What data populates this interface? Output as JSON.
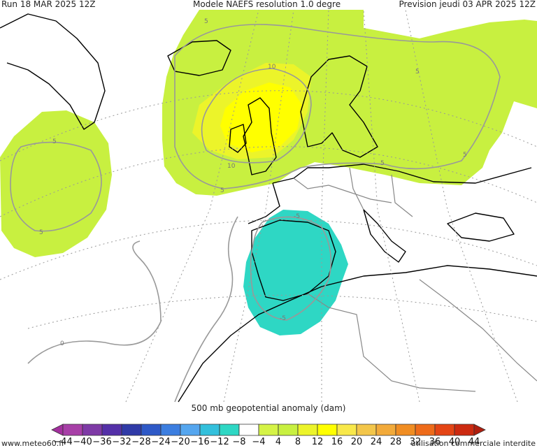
{
  "header": {
    "run": "Run 18 MAR 2025 12Z",
    "model": "Modele NAEFS resolution 1.0 degre",
    "forecast": "Prevision jeudi 03 APR 2025 12Z"
  },
  "subtitle": "500 mb geopotential anomaly (dam)",
  "footer": {
    "site": "www.meteo60.fr",
    "notice": "utilisation commerciale interdite"
  },
  "contour_labels": [
    {
      "text": "5",
      "name": "contour-label-greenland"
    },
    {
      "text": "10",
      "name": "contour-label-north-sea-upper"
    },
    {
      "text": "10",
      "name": "contour-label-north-sea-lower"
    },
    {
      "text": "5",
      "name": "contour-label-british-isles"
    },
    {
      "text": "5",
      "name": "contour-label-atlantic-upper"
    },
    {
      "text": "5",
      "name": "contour-label-atlantic-lower"
    },
    {
      "text": "5",
      "name": "contour-label-russia"
    },
    {
      "text": "5",
      "name": "contour-label-central-europe"
    },
    {
      "text": "5",
      "name": "contour-label-ukraine"
    },
    {
      "text": "-5",
      "name": "contour-label-biscay"
    },
    {
      "text": "-5",
      "name": "contour-label-morocco"
    },
    {
      "text": "0",
      "name": "contour-label-canaries"
    }
  ],
  "scale": {
    "labels": [
      "-44",
      "-40",
      "-36",
      "-32",
      "-28",
      "-24",
      "-20",
      "-16",
      "-12",
      "-8",
      "-4",
      "4",
      "8",
      "12",
      "16",
      "20",
      "24",
      "28",
      "32",
      "36",
      "40",
      "44"
    ],
    "colors": [
      "#a73fa7",
      "#7e3aa6",
      "#5430a8",
      "#2f3aa7",
      "#2e59c7",
      "#3c7ee0",
      "#55a6ef",
      "#33c0dc",
      "#2ed7c4",
      "#ffffff",
      "#d5f346",
      "#c8f040",
      "#ecf42a",
      "#ffff00",
      "#f8e84a",
      "#f3c64a",
      "#f2aa3a",
      "#f08d22",
      "#ee6b1a",
      "#e44515",
      "#cc2a10"
    ],
    "end_low": "#a32f9e",
    "end_high": "#b01e0e"
  },
  "fields": {
    "positive_light": "#c8f040",
    "positive_mid": "#ecf42a",
    "positive_core": "#ffff00",
    "negative": "#2ed7c4"
  }
}
